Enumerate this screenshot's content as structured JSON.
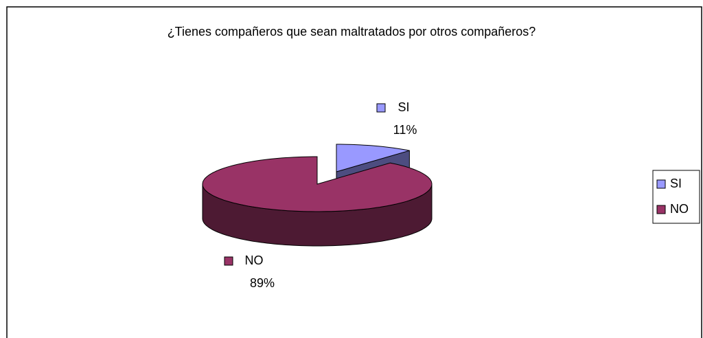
{
  "chart_data": {
    "type": "pie",
    "title": "¿Tienes compañeros que sean maltratados por otros compañeros?",
    "categories": [
      "SI",
      "NO"
    ],
    "values": [
      11,
      89
    ],
    "value_labels": [
      "11%",
      "89%"
    ],
    "colors": [
      "#9999ff",
      "#993366"
    ],
    "legend": "right"
  }
}
